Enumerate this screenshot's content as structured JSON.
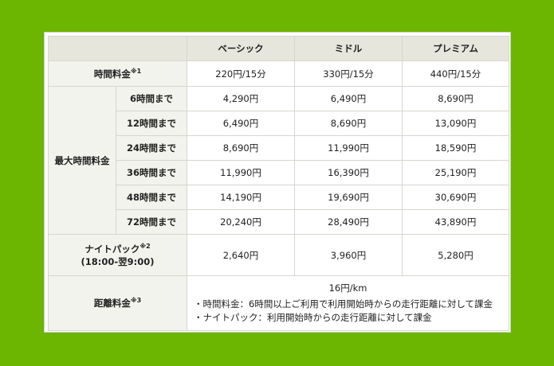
{
  "headers": [
    "ベーシック",
    "ミドル",
    "プレミアム"
  ],
  "hourly": {
    "label": "時間料金",
    "mark": "※1",
    "values": [
      "220円/15分",
      "330円/15分",
      "440円/15分"
    ]
  },
  "max": {
    "label": "最大時間料金",
    "rows": [
      {
        "label": "6時間まで",
        "values": [
          "4,290円",
          "6,490円",
          "8,690円"
        ]
      },
      {
        "label": "12時間まで",
        "values": [
          "6,490円",
          "8,690円",
          "13,090円"
        ]
      },
      {
        "label": "24時間まで",
        "values": [
          "8,690円",
          "11,990円",
          "18,590円"
        ]
      },
      {
        "label": "36時間まで",
        "values": [
          "11,990円",
          "16,390円",
          "25,190円"
        ]
      },
      {
        "label": "48時間まで",
        "values": [
          "14,190円",
          "19,690円",
          "30,690円"
        ]
      },
      {
        "label": "72時間まで",
        "values": [
          "20,240円",
          "28,490円",
          "43,890円"
        ]
      }
    ]
  },
  "night": {
    "label": "ナイトパック",
    "mark": "※2",
    "hours": "(18:00-翌9:00)",
    "values": [
      "2,640円",
      "3,960円",
      "5,280円"
    ]
  },
  "distance": {
    "label": "距離料金",
    "mark": "※3",
    "value": "16円/km",
    "notes": [
      "・時間料金：6時間以上ご利用で利用開始時からの走行距離に対して課金",
      "・ナイトパック：利用開始時からの走行距離に対して課金"
    ]
  }
}
